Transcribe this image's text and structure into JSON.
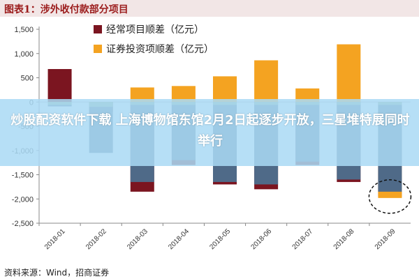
{
  "header": {
    "title": "图表1：涉外收付款部分项目"
  },
  "chart_data": {
    "type": "bar",
    "categories": [
      "2018-01",
      "2018-02",
      "2018-03",
      "2018-04",
      "2018-05",
      "2018-06",
      "2018-07",
      "2018-08",
      "2018-09"
    ],
    "series": [
      {
        "name": "经常项目顺差（亿元）",
        "color": "#7b1520",
        "values": [
          680,
          -200,
          -1850,
          -1300,
          -1700,
          -1800,
          -1300,
          -1650,
          -1950
        ]
      },
      {
        "name": "证券投资项顺差（亿元）",
        "color": "#f4a321",
        "values": [
          -80,
          -200,
          300,
          330,
          530,
          860,
          280,
          1190,
          -1980
        ]
      },
      {
        "name": "",
        "color": "#4f6a88",
        "values": [
          -90,
          -1050,
          -1650,
          -1200,
          -1650,
          -1700,
          -1230,
          -1600,
          -1850
        ]
      },
      {
        "name": "",
        "color": "#8fae8b",
        "values": [
          -60,
          -100,
          -60,
          -60,
          -60,
          -60,
          -60,
          -60,
          -60
        ]
      }
    ],
    "ylim": [
      -2500,
      1500
    ],
    "yticks": [
      "1,500",
      "1,000",
      "500",
      "0",
      "-500",
      "-1,000",
      "-1,500",
      "-2,000",
      "-2,500"
    ],
    "legend": "top-left",
    "xlabel": "",
    "ylabel": ""
  },
  "overlay": {
    "text": "炒股配资软件下载 上海博物馆东馆2月2日起逐步开放，三星堆特展同时举行"
  },
  "source": "资料来源：Wind，招商证券"
}
